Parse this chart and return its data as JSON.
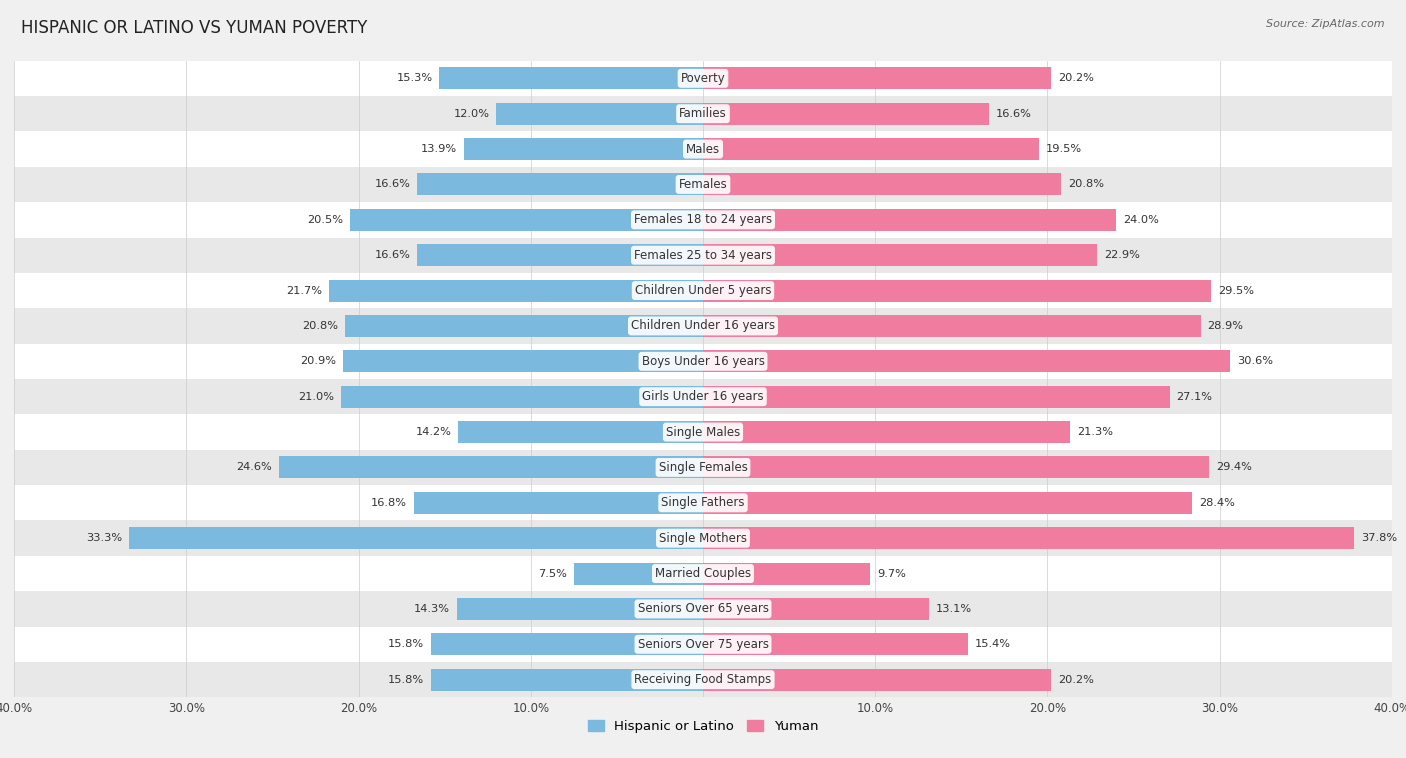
{
  "title": "HISPANIC OR LATINO VS YUMAN POVERTY",
  "source": "Source: ZipAtlas.com",
  "categories": [
    "Poverty",
    "Families",
    "Males",
    "Females",
    "Females 18 to 24 years",
    "Females 25 to 34 years",
    "Children Under 5 years",
    "Children Under 16 years",
    "Boys Under 16 years",
    "Girls Under 16 years",
    "Single Males",
    "Single Females",
    "Single Fathers",
    "Single Mothers",
    "Married Couples",
    "Seniors Over 65 years",
    "Seniors Over 75 years",
    "Receiving Food Stamps"
  ],
  "hispanic_values": [
    15.3,
    12.0,
    13.9,
    16.6,
    20.5,
    16.6,
    21.7,
    20.8,
    20.9,
    21.0,
    14.2,
    24.6,
    16.8,
    33.3,
    7.5,
    14.3,
    15.8,
    15.8
  ],
  "yuman_values": [
    20.2,
    16.6,
    19.5,
    20.8,
    24.0,
    22.9,
    29.5,
    28.9,
    30.6,
    27.1,
    21.3,
    29.4,
    28.4,
    37.8,
    9.7,
    13.1,
    15.4,
    20.2
  ],
  "hispanic_color": "#7cb9de",
  "yuman_color": "#f07ca0",
  "background_color": "#f0f0f0",
  "bar_bg_even": "#ffffff",
  "bar_bg_odd": "#e8e8e8",
  "axis_limit": 40.0,
  "bar_height": 0.62,
  "title_fontsize": 12,
  "label_fontsize": 8.5,
  "value_fontsize": 8.2,
  "legend_fontsize": 9.5
}
